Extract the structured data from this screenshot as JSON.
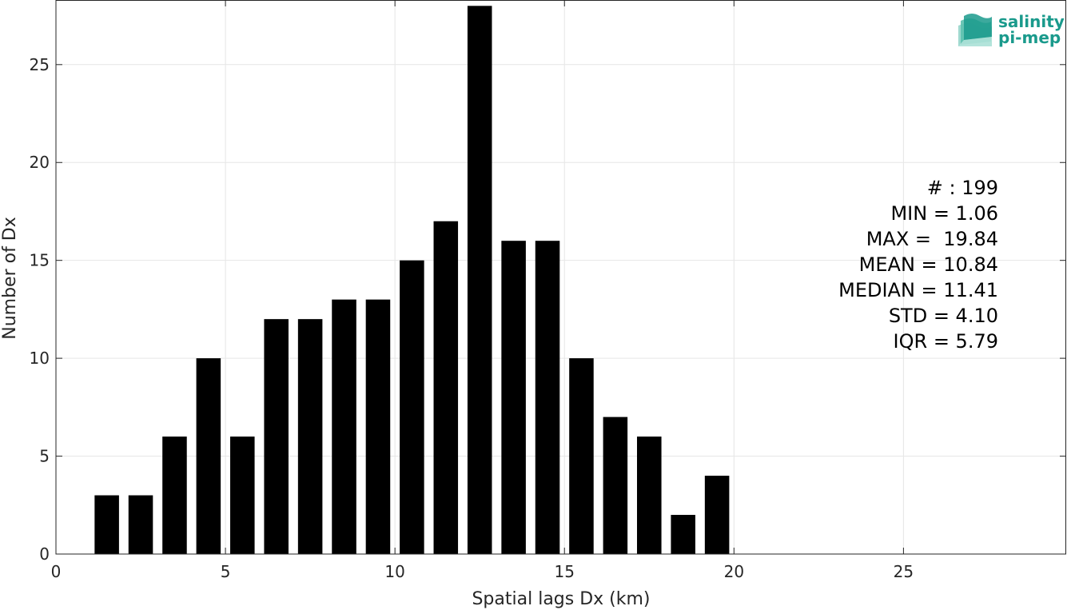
{
  "chart_data": {
    "type": "bar",
    "xlabel": "Spatial lags Dx (km)",
    "ylabel": "Number of Dx",
    "xlim": [
      0,
      29.8
    ],
    "ylim": [
      0,
      28.3
    ],
    "xticks": [
      0,
      5,
      10,
      15,
      20,
      25
    ],
    "yticks": [
      0,
      5,
      10,
      15,
      20,
      25
    ],
    "grid": true,
    "bar_color": "#000000",
    "bins": [
      1.5,
      2.5,
      3.5,
      4.5,
      5.5,
      6.5,
      7.5,
      8.5,
      9.5,
      10.5,
      11.5,
      12.5,
      13.5,
      14.5,
      15.5,
      16.5,
      17.5,
      18.5,
      19.5
    ],
    "values": [
      3,
      3,
      6,
      10,
      6,
      12,
      12,
      13,
      13,
      15,
      17,
      28,
      16,
      16,
      10,
      7,
      6,
      2,
      4
    ],
    "annotations": [
      "# : 199",
      "MIN = 1.06",
      "MAX =  19.84",
      "MEAN = 10.84",
      "MEDIAN = 11.41",
      "STD = 4.10",
      "IQR = 5.79"
    ]
  },
  "logo": {
    "line1": "salinity",
    "line2": "pi-mep",
    "color": "#1a9a8c"
  }
}
